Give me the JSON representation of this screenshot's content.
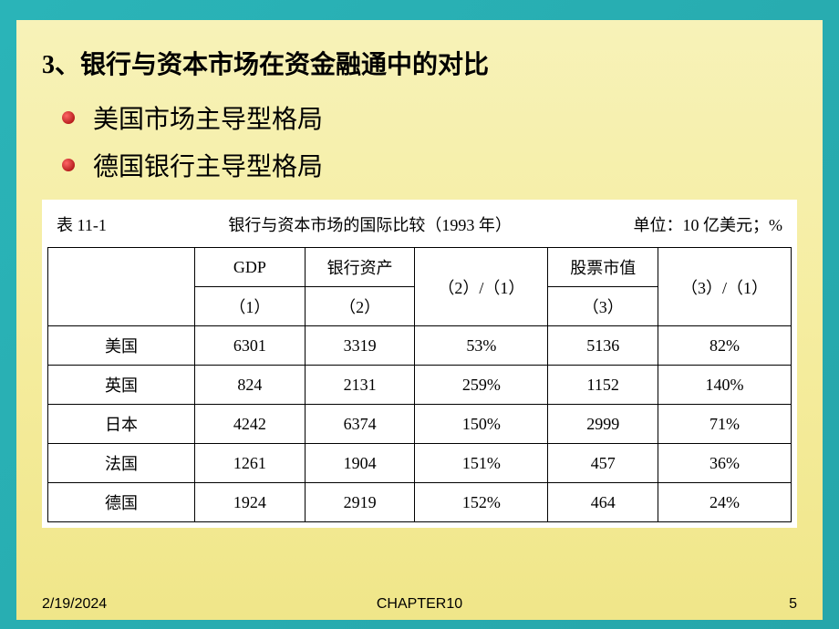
{
  "heading": "3、银行与资本市场在资金融通中的对比",
  "bullets": [
    {
      "text": "美国市场主导型格局"
    },
    {
      "text": "德国银行主导型格局"
    }
  ],
  "table": {
    "label": "表 11-1",
    "caption": "银行与资本市场的国际比较（1993 年）",
    "unit": "单位：10 亿美元；%",
    "headers": {
      "gdp": "GDP",
      "gdp_sub": "（1）",
      "bank": "银行资产",
      "bank_sub": "（2）",
      "ratio1": "（2）/（1）",
      "stock": "股票市值",
      "stock_sub": "（3）",
      "ratio2": "（3）/（1）"
    },
    "rows": [
      {
        "country": "美国",
        "gdp": "6301",
        "bank": "3319",
        "ratio1": "53%",
        "stock": "5136",
        "ratio2": "82%"
      },
      {
        "country": "英国",
        "gdp": "824",
        "bank": "2131",
        "ratio1": "259%",
        "stock": "1152",
        "ratio2": "140%"
      },
      {
        "country": "日本",
        "gdp": "4242",
        "bank": "6374",
        "ratio1": "150%",
        "stock": "2999",
        "ratio2": "71%"
      },
      {
        "country": "法国",
        "gdp": "1261",
        "bank": "1904",
        "ratio1": "151%",
        "stock": "457",
        "ratio2": "36%"
      },
      {
        "country": "德国",
        "gdp": "1924",
        "bank": "2919",
        "ratio1": "152%",
        "stock": "464",
        "ratio2": "24%"
      }
    ]
  },
  "footer": {
    "date": "2/19/2024",
    "chapter": "CHAPTER10",
    "page": "5"
  },
  "colors": {
    "border_gradient_start": "#2ab4b8",
    "border_gradient_end": "#26a6aa",
    "content_bg_start": "#f7f2b8",
    "content_bg_end": "#f0e689",
    "table_bg": "#ffffff",
    "text": "#000000",
    "bullet_light": "#ff6666",
    "bullet_dark": "#990000"
  }
}
